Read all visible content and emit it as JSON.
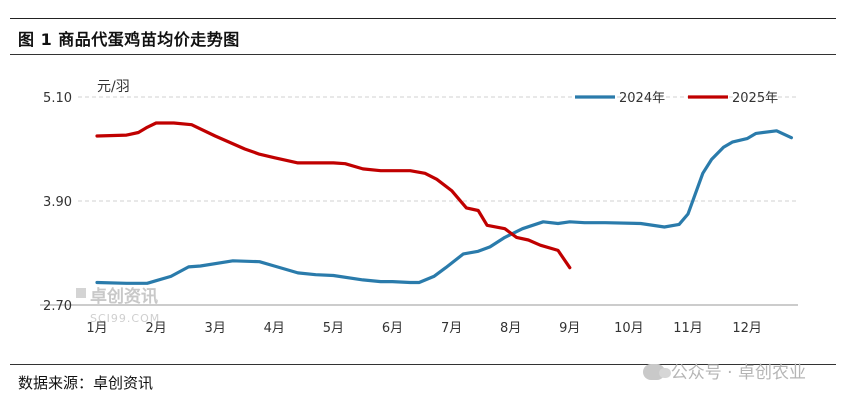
{
  "figure": {
    "title": "图 1 商品代蛋鸡苗均价走势图",
    "source": "数据来源：卓创资讯",
    "watermark": "公众号 · 卓创农业",
    "logo_text": "卓创资讯",
    "logo_sub": "SCI99.COM"
  },
  "colors": {
    "series_2024": "#2a7bab",
    "series_2025": "#c00000",
    "grid": "#d0d0d0"
  },
  "chart_data": {
    "type": "line",
    "ylabel": "元/羽",
    "ylim": [
      2.7,
      5.1
    ],
    "yticks": [
      "2.70",
      "3.90",
      "5.10"
    ],
    "categories": [
      "1月",
      "2月",
      "3月",
      "4月",
      "5月",
      "6月",
      "7月",
      "8月",
      "9月",
      "10月",
      "11月",
      "12月"
    ],
    "grid": "horizontal dashed",
    "legend_position": "top-right",
    "series": [
      {
        "name": "2024年",
        "x": [
          1.0,
          1.5,
          1.85,
          2.0,
          2.25,
          2.55,
          2.75,
          3.3,
          3.75,
          4.0,
          4.4,
          4.7,
          5.0,
          5.5,
          5.8,
          6.0,
          6.3,
          6.45,
          6.7,
          6.9,
          7.2,
          7.45,
          7.65,
          7.9,
          8.2,
          8.55,
          8.8,
          9.0,
          9.25,
          9.4,
          9.6,
          10.2,
          10.6,
          10.85,
          11.0,
          11.25,
          11.4,
          11.6,
          11.75,
          12.0,
          12.15,
          12.5,
          12.75
        ],
        "values": [
          2.96,
          2.95,
          2.95,
          2.98,
          3.03,
          3.14,
          3.15,
          3.21,
          3.2,
          3.15,
          3.07,
          3.05,
          3.04,
          2.99,
          2.97,
          2.97,
          2.96,
          2.96,
          3.03,
          3.13,
          3.29,
          3.32,
          3.37,
          3.48,
          3.58,
          3.66,
          3.64,
          3.66,
          3.65,
          3.65,
          3.65,
          3.64,
          3.6,
          3.63,
          3.75,
          4.22,
          4.38,
          4.52,
          4.58,
          4.62,
          4.68,
          4.71,
          4.63
        ]
      },
      {
        "name": "2025年",
        "x": [
          1.0,
          1.5,
          1.7,
          1.85,
          2.0,
          2.3,
          2.6,
          3.0,
          3.5,
          3.75,
          4.0,
          4.4,
          4.8,
          5.0,
          5.2,
          5.5,
          5.8,
          6.0,
          6.3,
          6.55,
          6.75,
          7.0,
          7.25,
          7.45,
          7.6,
          7.9,
          8.1,
          8.3,
          8.5,
          8.8,
          9.0
        ],
        "values": [
          4.65,
          4.66,
          4.69,
          4.75,
          4.8,
          4.8,
          4.78,
          4.65,
          4.5,
          4.44,
          4.4,
          4.34,
          4.34,
          4.34,
          4.33,
          4.27,
          4.25,
          4.25,
          4.25,
          4.22,
          4.15,
          4.02,
          3.82,
          3.79,
          3.62,
          3.58,
          3.48,
          3.45,
          3.39,
          3.33,
          3.13
        ]
      }
    ]
  }
}
